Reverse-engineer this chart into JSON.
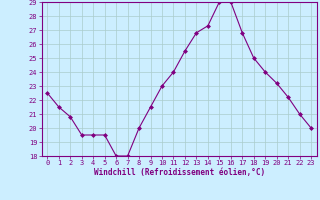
{
  "x": [
    0,
    1,
    2,
    3,
    4,
    5,
    6,
    7,
    8,
    9,
    10,
    11,
    12,
    13,
    14,
    15,
    16,
    17,
    18,
    19,
    20,
    21,
    22,
    23
  ],
  "y": [
    22.5,
    21.5,
    20.8,
    19.5,
    19.5,
    19.5,
    18.0,
    18.0,
    20.0,
    21.5,
    23.0,
    24.0,
    25.5,
    26.8,
    27.3,
    29.0,
    29.0,
    26.8,
    25.0,
    24.0,
    23.2,
    22.2,
    21.0,
    20.0
  ],
  "line_color": "#800080",
  "marker": "D",
  "marker_size": 2.0,
  "bg_color": "#cceeff",
  "grid_color": "#aacccc",
  "xlabel": "Windchill (Refroidissement éolien,°C)",
  "xlabel_color": "#800080",
  "ylim": [
    18,
    29
  ],
  "yticks": [
    18,
    19,
    20,
    21,
    22,
    23,
    24,
    25,
    26,
    27,
    28,
    29
  ],
  "xticks": [
    0,
    1,
    2,
    3,
    4,
    5,
    6,
    7,
    8,
    9,
    10,
    11,
    12,
    13,
    14,
    15,
    16,
    17,
    18,
    19,
    20,
    21,
    22,
    23
  ],
  "tick_color": "#800080",
  "spine_color": "#800080",
  "tick_fontsize": 5.0,
  "xlabel_fontsize": 5.5
}
